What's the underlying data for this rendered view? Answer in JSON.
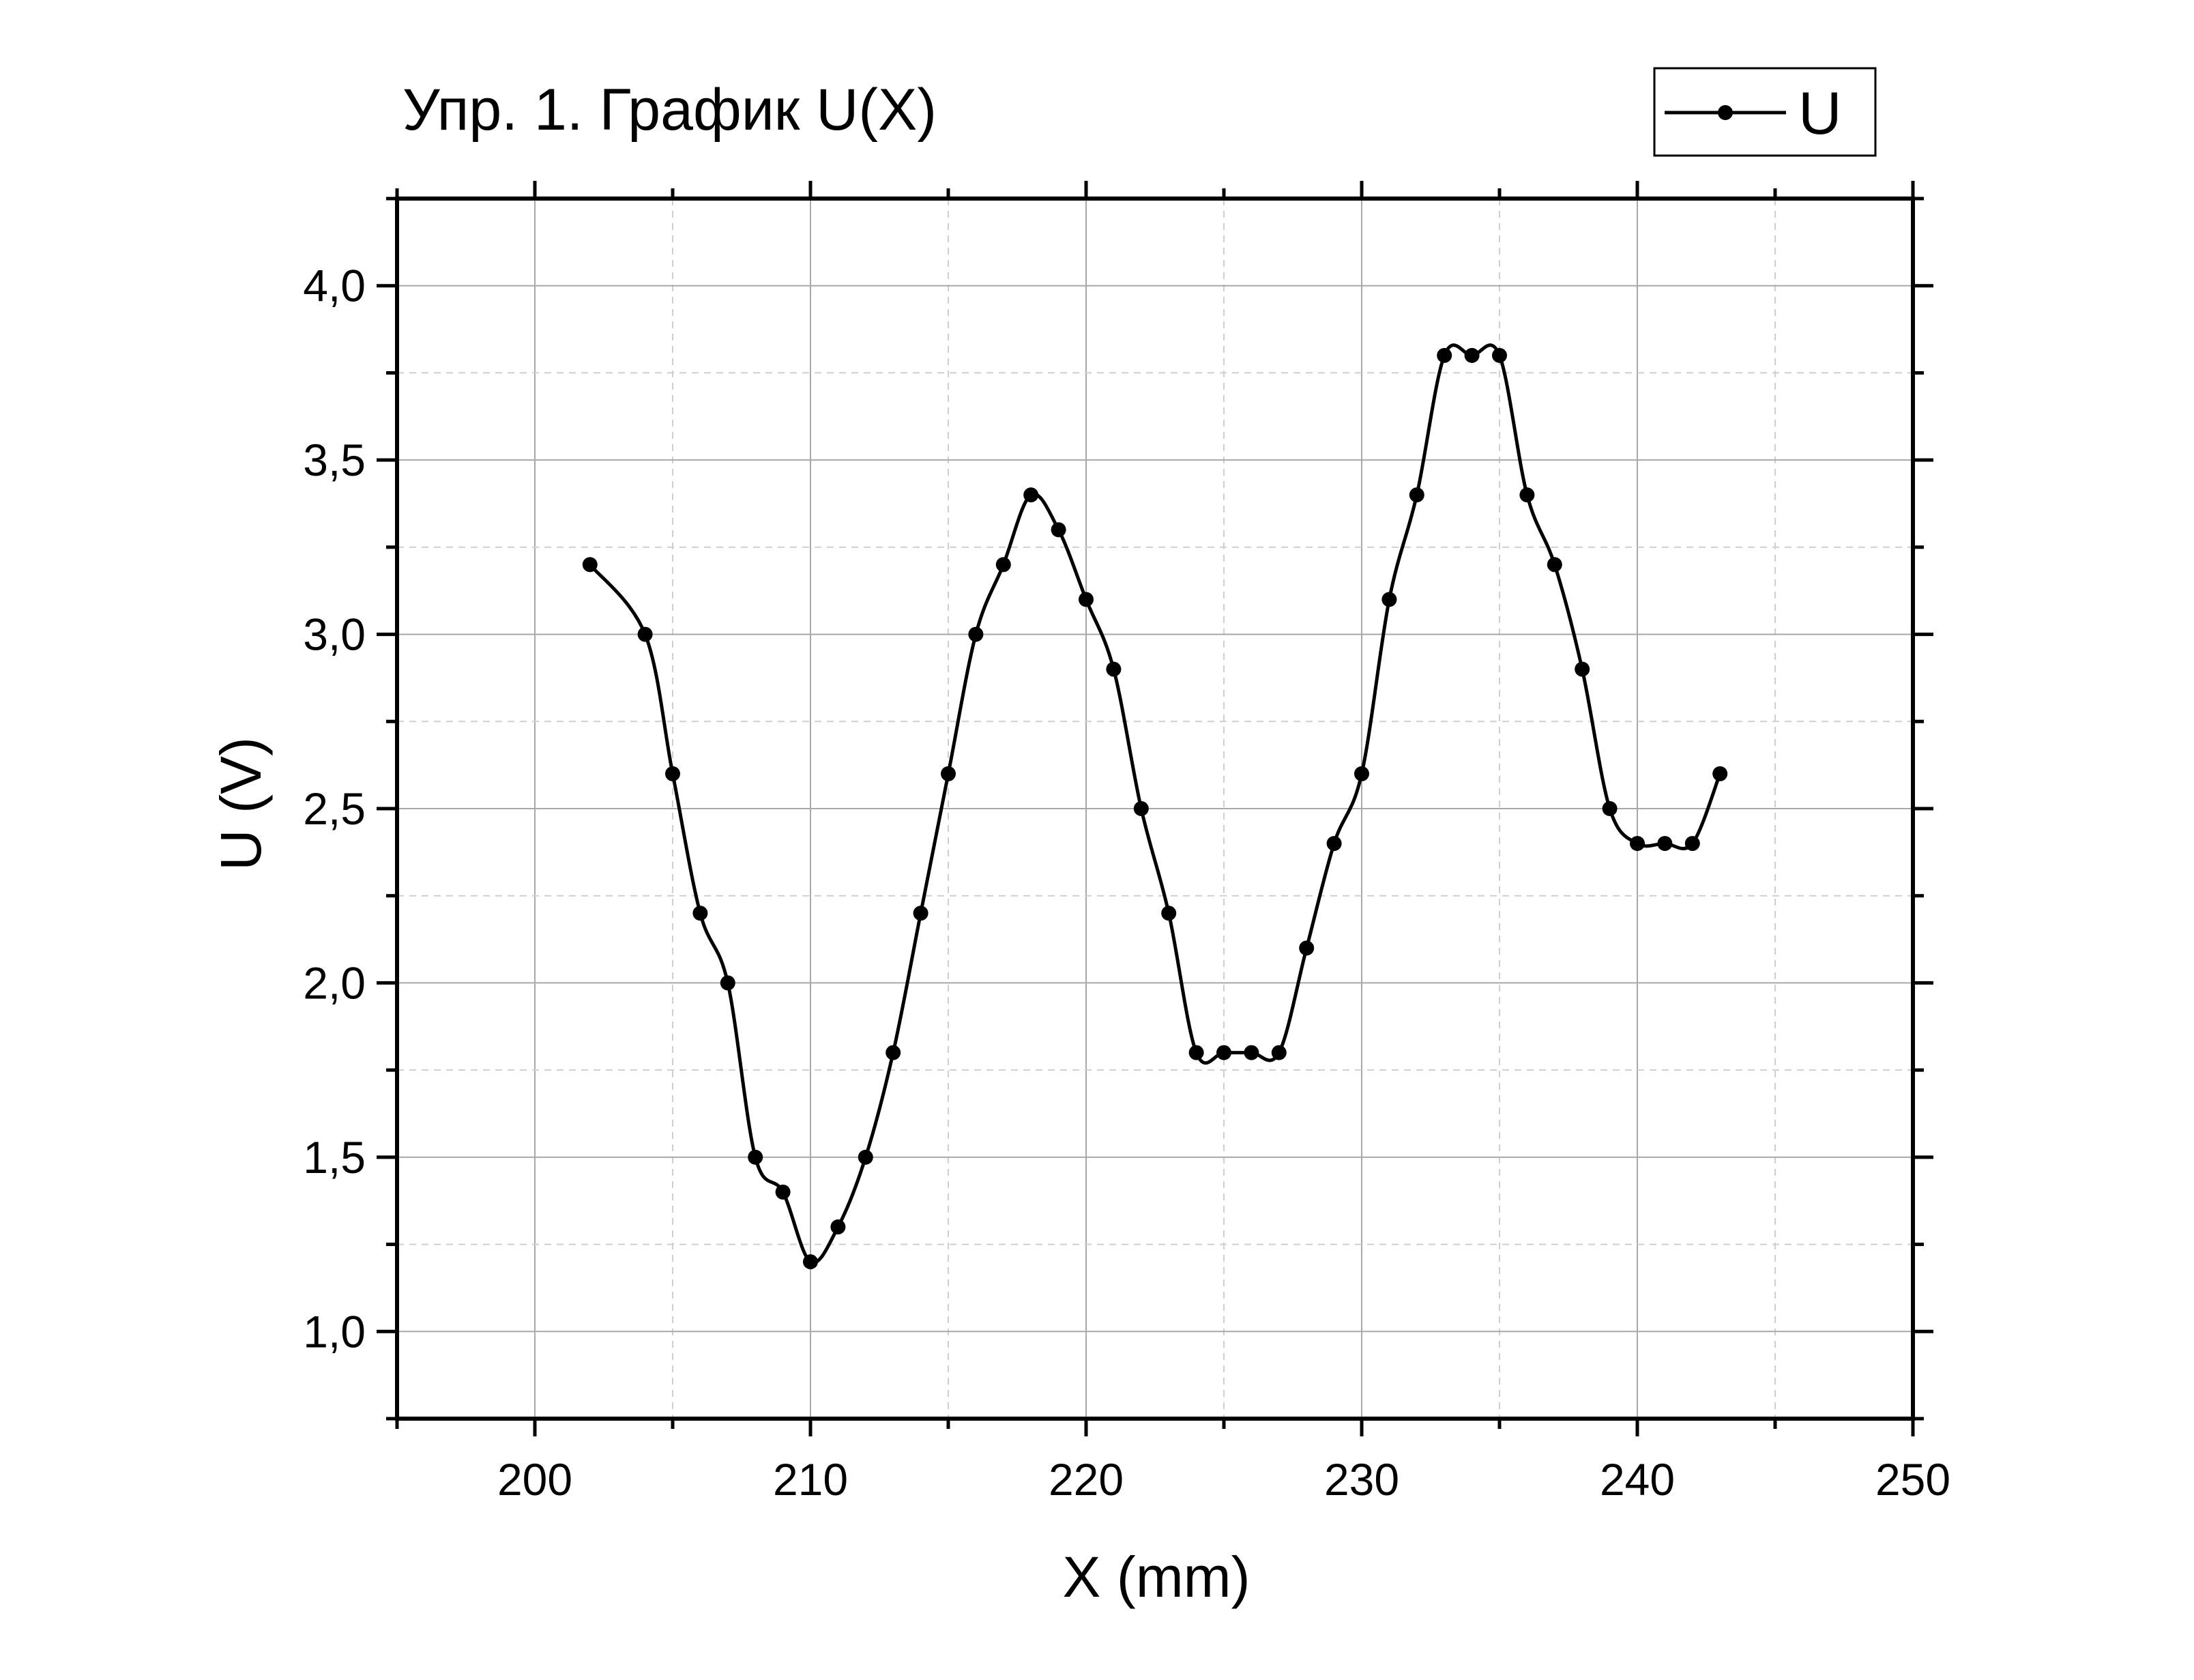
{
  "chart_data": {
    "type": "line",
    "title": "Упр. 1. График U(X)",
    "xlabel": "X (mm)",
    "ylabel": "U (V)",
    "xlim": [
      195,
      250
    ],
    "ylim": [
      0.75,
      4.25
    ],
    "x_ticks": [
      200,
      210,
      220,
      230,
      240,
      250
    ],
    "x_tick_labels": [
      "200",
      "210",
      "220",
      "230",
      "240",
      "250"
    ],
    "y_ticks": [
      1.0,
      1.5,
      2.0,
      2.5,
      3.0,
      3.5,
      4.0
    ],
    "y_tick_labels": [
      "1,0",
      "1,5",
      "2,0",
      "2,5",
      "3,0",
      "3,5",
      "4,0"
    ],
    "grid": true,
    "legend_position": "top-right",
    "series": [
      {
        "name": "U",
        "color": "#000000",
        "marker": "circle",
        "line": "smooth",
        "x": [
          202,
          204,
          205,
          206,
          207,
          208,
          209,
          210,
          211,
          212,
          213,
          214,
          215,
          216,
          217,
          218,
          219,
          220,
          221,
          222,
          223,
          224,
          225,
          226,
          227,
          228,
          229,
          230,
          231,
          232,
          233,
          234,
          235,
          236,
          237,
          238,
          239,
          240,
          241,
          242,
          243
        ],
        "y": [
          3.2,
          3.0,
          2.6,
          2.2,
          2.0,
          1.5,
          1.4,
          1.2,
          1.3,
          1.5,
          1.8,
          2.2,
          2.6,
          3.0,
          3.2,
          3.4,
          3.3,
          3.1,
          2.9,
          2.5,
          2.2,
          1.8,
          1.8,
          1.8,
          1.8,
          2.1,
          2.4,
          2.6,
          3.1,
          3.4,
          3.8,
          3.8,
          3.8,
          3.4,
          3.2,
          2.9,
          2.5,
          2.4,
          2.4,
          2.4,
          2.6
        ]
      }
    ]
  }
}
